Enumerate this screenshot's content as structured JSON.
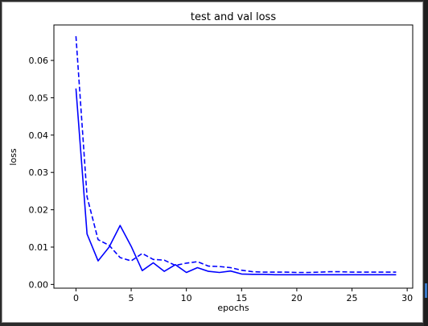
{
  "chart_data": {
    "type": "line",
    "title": "test and val loss",
    "xlabel": "epochs",
    "ylabel": "loss",
    "xlim": [
      -2,
      30.5
    ],
    "ylim": [
      -0.001,
      0.0695
    ],
    "xticks": [
      0,
      5,
      10,
      15,
      20,
      25,
      30
    ],
    "yticks": [
      0.0,
      0.01,
      0.02,
      0.03,
      0.04,
      0.05,
      0.06
    ],
    "ytick_labels": [
      "0.00",
      "0.01",
      "0.02",
      "0.03",
      "0.04",
      "0.05",
      "0.06"
    ],
    "grid": false,
    "x": [
      0,
      1,
      2,
      3,
      4,
      5,
      6,
      7,
      8,
      9,
      10,
      11,
      12,
      13,
      14,
      15,
      16,
      17,
      18,
      19,
      20,
      21,
      22,
      23,
      24,
      25,
      26,
      27,
      28,
      29
    ],
    "series": [
      {
        "line_style": "solid",
        "color": "#0000ff",
        "values": [
          0.0525,
          0.0135,
          0.0063,
          0.01,
          0.0158,
          0.0102,
          0.0037,
          0.0058,
          0.0035,
          0.0053,
          0.0032,
          0.0045,
          0.0035,
          0.0032,
          0.0036,
          0.0028,
          0.0027,
          0.0027,
          0.0026,
          0.0026,
          0.0026,
          0.0026,
          0.0026,
          0.0026,
          0.0026,
          0.0026,
          0.0026,
          0.0026,
          0.0026,
          0.0026
        ]
      },
      {
        "line_style": "dashed",
        "color": "#0000ff",
        "values": [
          0.0665,
          0.0235,
          0.012,
          0.0105,
          0.0072,
          0.0063,
          0.0083,
          0.0067,
          0.0065,
          0.0051,
          0.0057,
          0.0061,
          0.0049,
          0.0048,
          0.0045,
          0.0038,
          0.0034,
          0.0033,
          0.0033,
          0.0033,
          0.0032,
          0.0032,
          0.0033,
          0.0034,
          0.0034,
          0.0033,
          0.0033,
          0.0033,
          0.0033,
          0.0033
        ]
      }
    ]
  }
}
